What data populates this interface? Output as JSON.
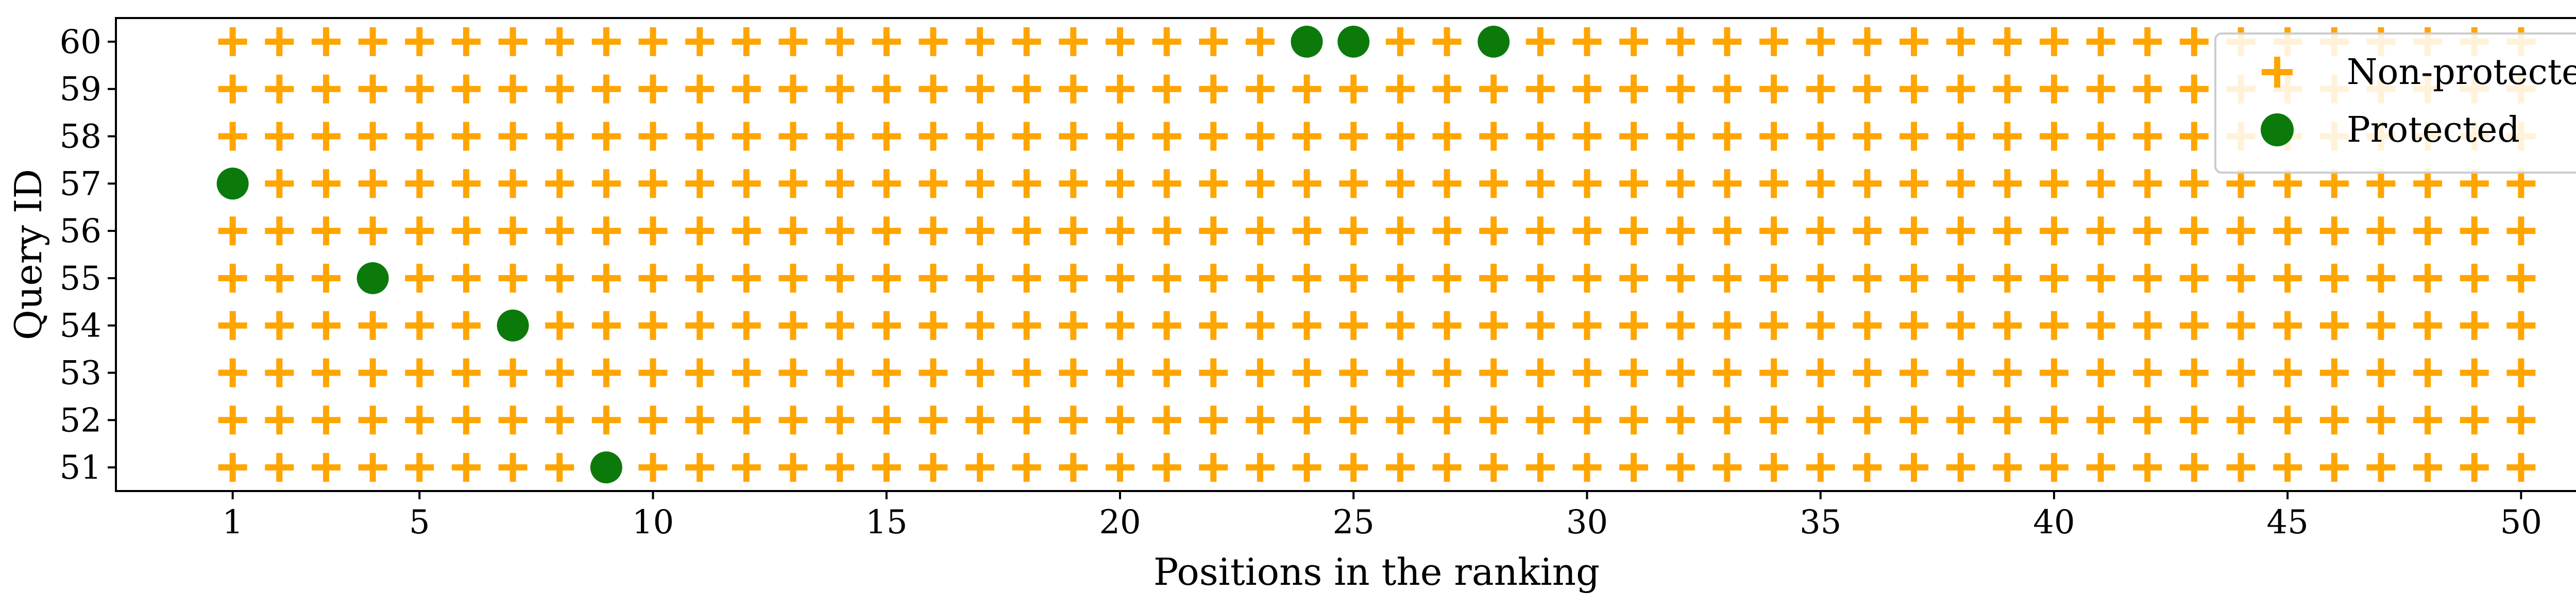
{
  "chart_data": {
    "type": "scatter",
    "xlabel": "Positions in the ranking",
    "ylabel": "Query ID",
    "xlim": [
      -1.5,
      52.5
    ],
    "ylim": [
      50.5,
      60.5
    ],
    "xticks": [
      1,
      5,
      10,
      15,
      20,
      25,
      30,
      35,
      40,
      45,
      50
    ],
    "yticks": [
      51,
      52,
      53,
      54,
      55,
      56,
      57,
      58,
      59,
      60
    ],
    "positions_per_query": 50,
    "query_ids": [
      51,
      52,
      53,
      54,
      55,
      56,
      57,
      58,
      59,
      60
    ],
    "legend_position": "top-right",
    "grid": false,
    "series": [
      {
        "name": "Non-protected",
        "marker": "plus",
        "color": "#FFA500",
        "description_rule": "all positions 1-50 for every query except protected points"
      },
      {
        "name": "Protected",
        "marker": "circle",
        "color": "#0B7A0B",
        "points": [
          {
            "x": 24,
            "y": 60
          },
          {
            "x": 25,
            "y": 60
          },
          {
            "x": 28,
            "y": 60
          },
          {
            "x": 1,
            "y": 57
          },
          {
            "x": 4,
            "y": 55
          },
          {
            "x": 7,
            "y": 54
          },
          {
            "x": 9,
            "y": 51
          }
        ]
      }
    ]
  }
}
